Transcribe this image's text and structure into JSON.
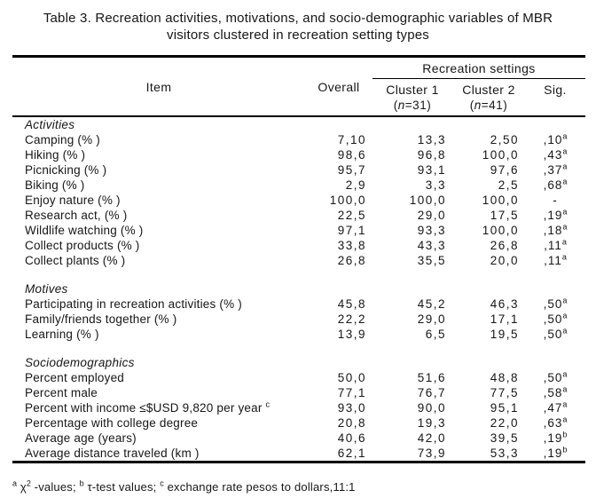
{
  "colors": {
    "text": "#161616",
    "background": "#ffffff",
    "rule": "#000000"
  },
  "title_lines": [
    "Table 3. Recreation activities, motivations, and socio-demographic variables of MBR",
    "visitors clustered in recreation setting types"
  ],
  "table": {
    "headers": {
      "item": "Item",
      "overall": "Overall",
      "group": "Recreation settings",
      "cluster1": "Cluster 1",
      "cluster2": "Cluster 2",
      "paren_open": "(",
      "n_symbol": "n",
      "cluster1_n": "=31)",
      "cluster2_n": "=41)",
      "sig": "Sig."
    },
    "sections": [
      {
        "name": "Activities",
        "rows": [
          {
            "label": "Camping (% )",
            "overall": "7,10",
            "c1": "13,3",
            "c2": "2,50",
            "sig": ",10",
            "sig_sup": "a"
          },
          {
            "label": "Hiking (% )",
            "overall": "98,6",
            "c1": "96,8",
            "c2": "100,0",
            "sig": ",43",
            "sig_sup": "a"
          },
          {
            "label": "Picnicking (% )",
            "overall": "95,7",
            "c1": "93,1",
            "c2": "97,6",
            "sig": ",37",
            "sig_sup": "a"
          },
          {
            "label": "Biking (% )",
            "overall": "2,9",
            "c1": "3,3",
            "c2": "2,5",
            "sig": ",68",
            "sig_sup": "a"
          },
          {
            "label": "Enjoy nature (% )",
            "overall": "100,0",
            "c1": "100,0",
            "c2": "100,0",
            "sig": "-"
          },
          {
            "label": "Research act, (% )",
            "overall": "22,5",
            "c1": "29,0",
            "c2": "17,5",
            "sig": ",19",
            "sig_sup": "a"
          },
          {
            "label": "Wildlife watching (% )",
            "overall": "97,1",
            "c1": "93,3",
            "c2": "100,0",
            "sig": ",18",
            "sig_sup": "a"
          },
          {
            "label": "Collect products (% )",
            "overall": "33,8",
            "c1": "43,3",
            "c2": "26,8",
            "sig": ",11",
            "sig_sup": "a"
          },
          {
            "label": "Collect plants (% )",
            "overall": "26,8",
            "c1": "35,5",
            "c2": "20,0",
            "sig": ",11",
            "sig_sup": "a"
          }
        ]
      },
      {
        "name": "Motives",
        "rows": [
          {
            "label": "Participating in recreation activities (% )",
            "overall": "45,8",
            "c1": "45,2",
            "c2": "46,3",
            "sig": ",50",
            "sig_sup": "a"
          },
          {
            "label": "Family/friends together (% )",
            "overall": "22,2",
            "c1": "29,0",
            "c2": "17,1",
            "sig": ",50",
            "sig_sup": "a"
          },
          {
            "label": "Learning (% )",
            "overall": "13,9",
            "c1": "6,5",
            "c2": "19,5",
            "sig": ",50",
            "sig_sup": "a"
          }
        ]
      },
      {
        "name": "Sociodemographics",
        "rows": [
          {
            "label": "Percent employed",
            "overall": "50,0",
            "c1": "51,6",
            "c2": "48,8",
            "sig": ",50",
            "sig_sup": "a"
          },
          {
            "label": "Percent male",
            "overall": "77,1",
            "c1": "76,7",
            "c2": "77,5",
            "sig": ",58",
            "sig_sup": "a"
          },
          {
            "label": "Percent with income ≤$USD 9,820 per year ",
            "label_sup": "c",
            "overall": "93,0",
            "c1": "90,0",
            "c2": "95,1",
            "sig": ",47",
            "sig_sup": "a"
          },
          {
            "label": "Percentage with college degree",
            "overall": "20,8",
            "c1": "19,3",
            "c2": "22,0",
            "sig": ",63",
            "sig_sup": "a"
          },
          {
            "label": "Average age  (years)",
            "overall": "40,6",
            "c1": "42,0",
            "c2": "39,5",
            "sig": ",19",
            "sig_sup": "b"
          },
          {
            "label": "Average distance traveled (km )",
            "overall": "62,1",
            "c1": "73,9",
            "c2": "53,3",
            "sig": ",19",
            "sig_sup": "b"
          }
        ]
      }
    ]
  },
  "footnote": {
    "sup_a": "a",
    "chi": " χ",
    "chi_sup": "2",
    "text_a": " -values; ",
    "sup_b": "b",
    "text_b": " τ-test values; ",
    "sup_c": "c",
    "text_c": " exchange rate pesos to dollars,11:1"
  }
}
